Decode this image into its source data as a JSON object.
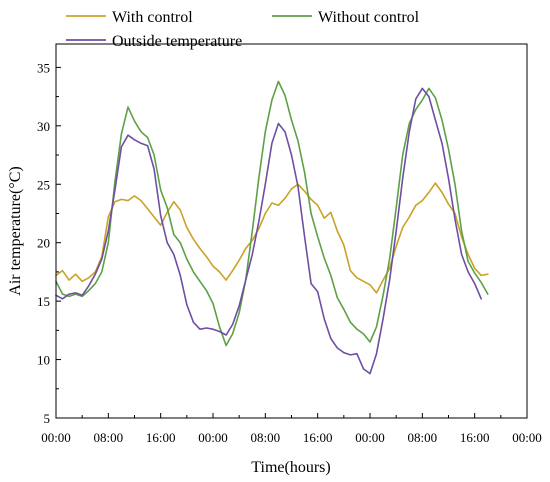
{
  "chart_data": {
    "type": "line",
    "xlabel": "Time(hours)",
    "ylabel": "Air temperature(°C)",
    "ylim": [
      5,
      37
    ],
    "xlim": [
      0,
      72
    ],
    "grid": false,
    "legend_position": "top",
    "x_tick_values": [
      0,
      8,
      16,
      24,
      32,
      40,
      48,
      56,
      64,
      72
    ],
    "x_tick_labels": [
      "00:00",
      "08:00",
      "16:00",
      "00:00",
      "08:00",
      "16:00",
      "00:00",
      "08:00",
      "16:00",
      "00:00"
    ],
    "y_ticks": [
      5,
      10,
      15,
      20,
      25,
      30,
      35
    ],
    "series": [
      {
        "name": "With control",
        "color": "#C9A227",
        "points": [
          [
            0.0,
            17.2
          ],
          [
            1.0,
            17.6
          ],
          [
            2.0,
            16.8
          ],
          [
            3.0,
            17.3
          ],
          [
            4.0,
            16.7
          ],
          [
            5.0,
            17.0
          ],
          [
            6.0,
            17.5
          ],
          [
            7.0,
            18.8
          ],
          [
            8.0,
            22.2
          ],
          [
            9.0,
            23.5
          ],
          [
            10.0,
            23.7
          ],
          [
            11.0,
            23.6
          ],
          [
            12.0,
            24.0
          ],
          [
            13.0,
            23.6
          ],
          [
            14.0,
            22.9
          ],
          [
            15.0,
            22.2
          ],
          [
            16.0,
            21.5
          ],
          [
            17.0,
            22.6
          ],
          [
            18.0,
            23.5
          ],
          [
            19.0,
            22.8
          ],
          [
            20.0,
            21.3
          ],
          [
            21.0,
            20.3
          ],
          [
            22.0,
            19.5
          ],
          [
            23.0,
            18.8
          ],
          [
            24.0,
            18.0
          ],
          [
            25.0,
            17.5
          ],
          [
            26.0,
            16.8
          ],
          [
            27.0,
            17.6
          ],
          [
            28.0,
            18.5
          ],
          [
            29.0,
            19.5
          ],
          [
            30.0,
            20.2
          ],
          [
            31.0,
            21.2
          ],
          [
            32.0,
            22.5
          ],
          [
            33.0,
            23.4
          ],
          [
            34.0,
            23.2
          ],
          [
            35.0,
            23.8
          ],
          [
            36.0,
            24.6
          ],
          [
            37.0,
            25.0
          ],
          [
            38.0,
            24.4
          ],
          [
            39.0,
            23.7
          ],
          [
            40.0,
            23.2
          ],
          [
            41.0,
            22.1
          ],
          [
            42.0,
            22.6
          ],
          [
            43.0,
            21.0
          ],
          [
            44.0,
            19.8
          ],
          [
            45.0,
            17.6
          ],
          [
            46.0,
            17.0
          ],
          [
            47.0,
            16.7
          ],
          [
            48.0,
            16.4
          ],
          [
            49.0,
            15.7
          ],
          [
            50.0,
            16.8
          ],
          [
            51.0,
            17.8
          ],
          [
            52.0,
            19.7
          ],
          [
            53.0,
            21.3
          ],
          [
            54.0,
            22.2
          ],
          [
            55.0,
            23.2
          ],
          [
            56.0,
            23.6
          ],
          [
            57.0,
            24.3
          ],
          [
            58.0,
            25.1
          ],
          [
            59.0,
            24.3
          ],
          [
            60.0,
            23.3
          ],
          [
            61.0,
            22.5
          ],
          [
            62.0,
            20.5
          ],
          [
            63.0,
            19.0
          ],
          [
            64.0,
            17.8
          ],
          [
            65.0,
            17.2
          ],
          [
            66.0,
            17.3
          ]
        ]
      },
      {
        "name": "Without control",
        "color": "#5DA147",
        "points": [
          [
            0.0,
            16.7
          ],
          [
            1.0,
            15.6
          ],
          [
            2.0,
            15.4
          ],
          [
            3.0,
            15.6
          ],
          [
            4.0,
            15.4
          ],
          [
            5.0,
            15.9
          ],
          [
            6.0,
            16.5
          ],
          [
            7.0,
            17.5
          ],
          [
            8.0,
            20.0
          ],
          [
            9.0,
            25.2
          ],
          [
            10.0,
            29.3
          ],
          [
            11.0,
            31.6
          ],
          [
            12.0,
            30.4
          ],
          [
            13.0,
            29.5
          ],
          [
            14.0,
            29.0
          ],
          [
            15.0,
            27.5
          ],
          [
            16.0,
            24.5
          ],
          [
            17.0,
            23.0
          ],
          [
            18.0,
            20.7
          ],
          [
            19.0,
            20.0
          ],
          [
            20.0,
            18.6
          ],
          [
            21.0,
            17.5
          ],
          [
            22.0,
            16.7
          ],
          [
            23.0,
            15.9
          ],
          [
            24.0,
            14.8
          ],
          [
            25.0,
            12.8
          ],
          [
            26.0,
            11.2
          ],
          [
            27.0,
            12.2
          ],
          [
            28.0,
            14.0
          ],
          [
            29.0,
            16.8
          ],
          [
            30.0,
            21.0
          ],
          [
            31.0,
            25.5
          ],
          [
            32.0,
            29.5
          ],
          [
            33.0,
            32.2
          ],
          [
            34.0,
            33.8
          ],
          [
            35.0,
            32.6
          ],
          [
            36.0,
            30.5
          ],
          [
            37.0,
            28.7
          ],
          [
            38.0,
            26.0
          ],
          [
            39.0,
            22.5
          ],
          [
            40.0,
            20.5
          ],
          [
            41.0,
            18.7
          ],
          [
            42.0,
            17.2
          ],
          [
            43.0,
            15.3
          ],
          [
            44.0,
            14.3
          ],
          [
            45.0,
            13.2
          ],
          [
            46.0,
            12.6
          ],
          [
            47.0,
            12.2
          ],
          [
            48.0,
            11.5
          ],
          [
            49.0,
            12.8
          ],
          [
            50.0,
            15.5
          ],
          [
            51.0,
            18.6
          ],
          [
            52.0,
            23.0
          ],
          [
            53.0,
            27.5
          ],
          [
            54.0,
            30.2
          ],
          [
            55.0,
            31.4
          ],
          [
            56.0,
            32.2
          ],
          [
            57.0,
            33.2
          ],
          [
            58.0,
            32.4
          ],
          [
            59.0,
            30.5
          ],
          [
            60.0,
            28.0
          ],
          [
            61.0,
            25.0
          ],
          [
            62.0,
            21.0
          ],
          [
            63.0,
            18.4
          ],
          [
            64.0,
            17.4
          ],
          [
            65.0,
            16.6
          ],
          [
            66.0,
            15.6
          ]
        ]
      },
      {
        "name": "Outside temperature",
        "color": "#6E4FA3",
        "points": [
          [
            0.0,
            15.5
          ],
          [
            1.0,
            15.2
          ],
          [
            2.0,
            15.6
          ],
          [
            3.0,
            15.7
          ],
          [
            4.0,
            15.5
          ],
          [
            5.0,
            16.3
          ],
          [
            6.0,
            17.3
          ],
          [
            7.0,
            18.6
          ],
          [
            8.0,
            21.0
          ],
          [
            9.0,
            24.5
          ],
          [
            10.0,
            28.2
          ],
          [
            11.0,
            29.2
          ],
          [
            12.0,
            28.8
          ],
          [
            13.0,
            28.5
          ],
          [
            14.0,
            28.3
          ],
          [
            15.0,
            26.3
          ],
          [
            16.0,
            22.3
          ],
          [
            17.0,
            20.0
          ],
          [
            18.0,
            19.0
          ],
          [
            19.0,
            17.2
          ],
          [
            20.0,
            14.7
          ],
          [
            21.0,
            13.2
          ],
          [
            22.0,
            12.6
          ],
          [
            23.0,
            12.7
          ],
          [
            24.0,
            12.6
          ],
          [
            25.0,
            12.4
          ],
          [
            26.0,
            12.1
          ],
          [
            27.0,
            13.0
          ],
          [
            28.0,
            14.6
          ],
          [
            29.0,
            16.8
          ],
          [
            30.0,
            19.0
          ],
          [
            31.0,
            21.8
          ],
          [
            32.0,
            25.0
          ],
          [
            33.0,
            28.5
          ],
          [
            34.0,
            30.2
          ],
          [
            35.0,
            29.5
          ],
          [
            36.0,
            27.5
          ],
          [
            37.0,
            24.8
          ],
          [
            38.0,
            20.5
          ],
          [
            39.0,
            16.5
          ],
          [
            40.0,
            15.8
          ],
          [
            41.0,
            13.5
          ],
          [
            42.0,
            11.8
          ],
          [
            43.0,
            11.0
          ],
          [
            44.0,
            10.6
          ],
          [
            45.0,
            10.4
          ],
          [
            46.0,
            10.5
          ],
          [
            47.0,
            9.2
          ],
          [
            48.0,
            8.8
          ],
          [
            49.0,
            10.5
          ],
          [
            50.0,
            13.5
          ],
          [
            51.0,
            16.8
          ],
          [
            52.0,
            21.0
          ],
          [
            53.0,
            25.5
          ],
          [
            54.0,
            29.5
          ],
          [
            55.0,
            32.3
          ],
          [
            56.0,
            33.2
          ],
          [
            57.0,
            32.5
          ],
          [
            58.0,
            30.5
          ],
          [
            59.0,
            28.5
          ],
          [
            60.0,
            25.5
          ],
          [
            61.0,
            22.0
          ],
          [
            62.0,
            19.0
          ],
          [
            63.0,
            17.5
          ],
          [
            64.0,
            16.5
          ],
          [
            65.0,
            15.2
          ]
        ]
      }
    ]
  }
}
